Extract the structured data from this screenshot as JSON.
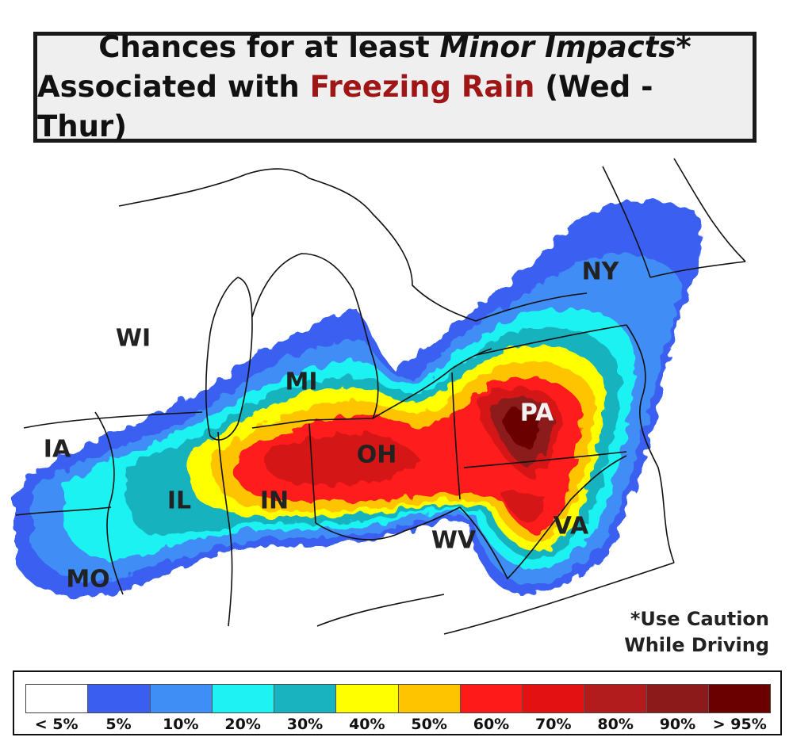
{
  "title": {
    "line1_pre": "Chances for at least ",
    "line1_em": "Minor Impacts",
    "line1_post": "*",
    "line2_pre": "Associated with ",
    "line2_hl": "Freezing Rain",
    "line2_post": " (Wed - Thur)"
  },
  "states": {
    "WI": "WI",
    "MI": "MI",
    "IA": "IA",
    "IL": "IL",
    "IN": "IN",
    "OH": "OH",
    "MO": "MO",
    "PA": "PA",
    "NY": "NY",
    "WV": "WV",
    "VA": "VA"
  },
  "caution": {
    "line1": "*Use Caution",
    "line2": "While Driving"
  },
  "legend": {
    "bins": [
      {
        "label": "< 5%",
        "color": "#ffffff"
      },
      {
        "label": "5%",
        "color": "#3a5ef0"
      },
      {
        "label": "10%",
        "color": "#3f8ef5"
      },
      {
        "label": "20%",
        "color": "#1ff2f2"
      },
      {
        "label": "30%",
        "color": "#19b3bf"
      },
      {
        "label": "40%",
        "color": "#ffff00"
      },
      {
        "label": "50%",
        "color": "#ffc400"
      },
      {
        "label": "60%",
        "color": "#ff1a1a"
      },
      {
        "label": "70%",
        "color": "#e31111"
      },
      {
        "label": "80%",
        "color": "#b31c1c"
      },
      {
        "label": "90%",
        "color": "#8c1a1a"
      },
      {
        "label": "> 95%",
        "color": "#6b0000"
      }
    ]
  }
}
